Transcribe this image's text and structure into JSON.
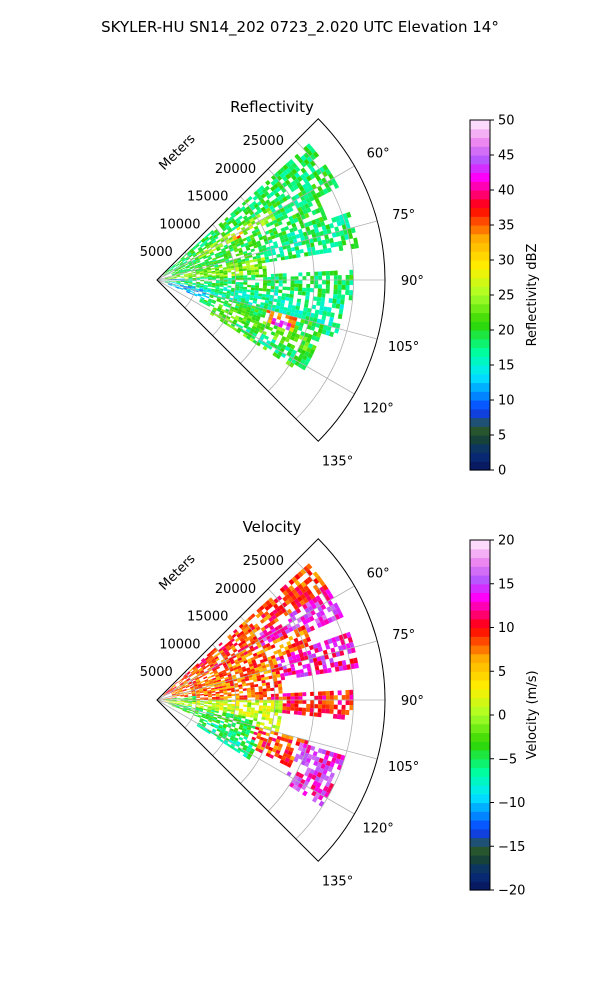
{
  "figure": {
    "title": "SKYLER-HU  SN14_202  0723_2.020 UTC Elevation 14°"
  },
  "chart_data": [
    {
      "type": "heatmap",
      "projection": "polar-sector",
      "title": "Reflectivity",
      "radial_axis_label": "Meters",
      "r_ticks": [
        5000,
        10000,
        15000,
        20000,
        25000
      ],
      "r_tick_labels": [
        "5000",
        "10000",
        "15000",
        "20000",
        "25000"
      ],
      "rlim": [
        0,
        29000
      ],
      "theta_range_deg": [
        45,
        135
      ],
      "theta_ticks_deg": [
        60,
        75,
        90,
        105,
        120,
        135
      ],
      "theta_tick_labels": [
        "60°",
        "75°",
        "90°",
        "105°",
        "120°",
        "135°"
      ],
      "grid": true,
      "colorbar": {
        "label": "Reflectivity dBZ",
        "min": 0,
        "max": 50,
        "ticks": [
          0,
          5,
          10,
          15,
          20,
          25,
          30,
          35,
          40,
          45,
          50
        ],
        "tick_labels": [
          "0",
          "5",
          "10",
          "15",
          "20",
          "25",
          "30",
          "35",
          "40",
          "45",
          "50"
        ]
      },
      "data_regions": [
        {
          "theta": [
            48,
            62
          ],
          "r": [
            1000,
            26000
          ],
          "value": 19
        },
        {
          "theta": [
            56,
            66
          ],
          "r": [
            6000,
            17000
          ],
          "value": 25
        },
        {
          "theta": [
            62,
            78
          ],
          "r": [
            2000,
            23000
          ],
          "value": 20
        },
        {
          "theta": [
            70,
            80
          ],
          "r": [
            14000,
            26000
          ],
          "value": 18
        },
        {
          "theta": [
            78,
            88
          ],
          "r": [
            800,
            14000
          ],
          "value": 24
        },
        {
          "theta": [
            86,
            96
          ],
          "r": [
            1500,
            25000
          ],
          "value": 19
        },
        {
          "theta": [
            96,
            108
          ],
          "r": [
            1000,
            24000
          ],
          "value": 17
        },
        {
          "theta": [
            104,
            116
          ],
          "r": [
            6000,
            22000
          ],
          "value": 20
        },
        {
          "theta": [
            110,
            122
          ],
          "r": [
            8000,
            21000
          ],
          "value": 22
        },
        {
          "theta": [
            105,
            111
          ],
          "r": [
            14500,
            18500
          ],
          "value": 33
        },
        {
          "theta": [
            107,
            110
          ],
          "r": [
            15500,
            17800
          ],
          "value": 43
        },
        {
          "theta": [
            116,
            121
          ],
          "r": [
            11000,
            22000
          ],
          "value": 18
        },
        {
          "theta": [
            60,
            63
          ],
          "r": [
            11000,
            12500
          ],
          "value": 34
        },
        {
          "theta": [
            86,
            92
          ],
          "r": [
            500,
            3500
          ],
          "value": 11
        },
        {
          "theta": [
            100,
            112
          ],
          "r": [
            1500,
            7000
          ],
          "value": 12
        }
      ]
    },
    {
      "type": "heatmap",
      "projection": "polar-sector",
      "title": "Velocity",
      "radial_axis_label": "Meters",
      "r_ticks": [
        5000,
        10000,
        15000,
        20000,
        25000
      ],
      "r_tick_labels": [
        "5000",
        "10000",
        "15000",
        "20000",
        "25000"
      ],
      "rlim": [
        0,
        29000
      ],
      "theta_range_deg": [
        45,
        135
      ],
      "theta_ticks_deg": [
        60,
        75,
        90,
        105,
        120,
        135
      ],
      "theta_tick_labels": [
        "60°",
        "75°",
        "90°",
        "105°",
        "120°",
        "135°"
      ],
      "grid": true,
      "colorbar": {
        "label": "Velocity (m/s)",
        "min": -20,
        "max": 20,
        "ticks": [
          -20,
          -15,
          -10,
          -5,
          0,
          5,
          10,
          15,
          20
        ],
        "tick_labels": [
          "−20",
          "−15",
          "−10",
          "−5",
          "0",
          "5",
          "10",
          "15",
          "20"
        ]
      },
      "data_regions": [
        {
          "theta": [
            48,
            62
          ],
          "r": [
            1000,
            26000
          ],
          "value": 9
        },
        {
          "theta": [
            56,
            66
          ],
          "r": [
            15000,
            26000
          ],
          "value": 14
        },
        {
          "theta": [
            62,
            80
          ],
          "r": [
            2000,
            21000
          ],
          "value": 8
        },
        {
          "theta": [
            70,
            80
          ],
          "r": [
            16000,
            26000
          ],
          "value": 13
        },
        {
          "theta": [
            80,
            90
          ],
          "r": [
            500,
            16000
          ],
          "value": 8
        },
        {
          "theta": [
            86,
            96
          ],
          "r": [
            14000,
            25000
          ],
          "value": 10
        },
        {
          "theta": [
            90,
            104
          ],
          "r": [
            1000,
            16000
          ],
          "value": 1
        },
        {
          "theta": [
            100,
            112
          ],
          "r": [
            1500,
            13000
          ],
          "value": -4
        },
        {
          "theta": [
            104,
            116
          ],
          "r": [
            13000,
            20000
          ],
          "value": 9
        },
        {
          "theta": [
            106,
            122
          ],
          "r": [
            19000,
            25000
          ],
          "value": 14
        },
        {
          "theta": [
            84,
            92
          ],
          "r": [
            800,
            5000
          ],
          "value": -3
        },
        {
          "theta": [
            112,
            122
          ],
          "r": [
            6000,
            14000
          ],
          "value": -6
        }
      ]
    }
  ]
}
